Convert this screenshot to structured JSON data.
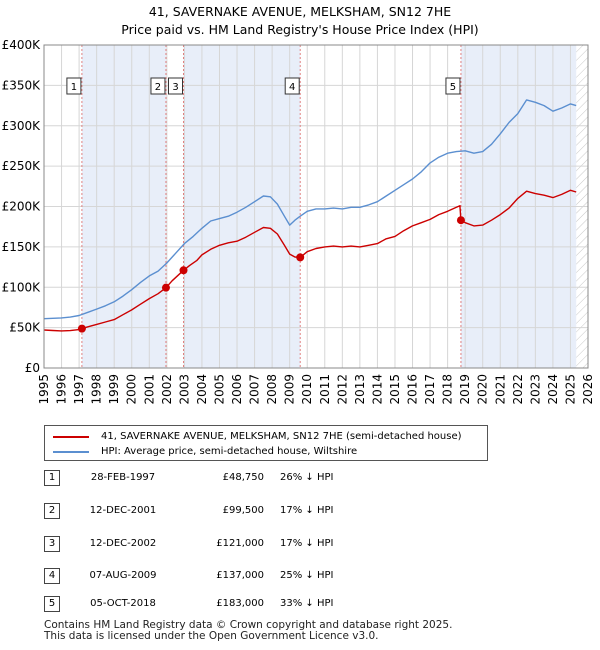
{
  "title_line1": "41, SAVERNAKE AVENUE, MELKSHAM, SN12 7HE",
  "title_line2": "Price paid vs. HM Land Registry's House Price Index (HPI)",
  "colors": {
    "price_line": "#cc0000",
    "hpi_line": "#5b8fd0",
    "shade": "#e8eef9",
    "grid": "#d6d6d6",
    "dashed": "#e08080"
  },
  "chart_data": {
    "type": "line",
    "title": "41, SAVERNAKE AVENUE, MELKSHAM, SN12 7HE — Price paid vs. HM Land Registry's House Price Index (HPI)",
    "xlim": [
      1995,
      2026
    ],
    "ylim": [
      0,
      400000
    ],
    "y_ticks": [
      {
        "value": 0,
        "label": "£0"
      },
      {
        "value": 50000,
        "label": "£50K"
      },
      {
        "value": 100000,
        "label": "£100K"
      },
      {
        "value": 150000,
        "label": "£150K"
      },
      {
        "value": 200000,
        "label": "£200K"
      },
      {
        "value": 250000,
        "label": "£250K"
      },
      {
        "value": 300000,
        "label": "£300K"
      },
      {
        "value": 350000,
        "label": "£350K"
      },
      {
        "value": 400000,
        "label": "£400K"
      }
    ],
    "x_ticks": [
      "1995",
      "1996",
      "1997",
      "1998",
      "1999",
      "2000",
      "2001",
      "2002",
      "2003",
      "2004",
      "2005",
      "2006",
      "2007",
      "2008",
      "2009",
      "2010",
      "2011",
      "2012",
      "2013",
      "2014",
      "2015",
      "2016",
      "2017",
      "2018",
      "2019",
      "2020",
      "2021",
      "2022",
      "2023",
      "2024",
      "2025",
      "2026"
    ],
    "shaded_ranges": [
      [
        1997.16,
        2001.95
      ],
      [
        2002.95,
        2009.6
      ],
      [
        2018.76,
        2025.33
      ]
    ],
    "hatch_from": 2025.33,
    "series": [
      {
        "name": "41, SAVERNAKE AVENUE, MELKSHAM, SN12 7HE (semi-detached house)",
        "x": [
          1995.0,
          1995.5,
          1996.0,
          1996.5,
          1997.0,
          1997.16,
          1997.5,
          1998.0,
          1998.5,
          1999.0,
          1999.5,
          2000.0,
          2000.5,
          2001.0,
          2001.5,
          2001.95,
          2002.3,
          2002.95,
          2003.3,
          2003.7,
          2004.0,
          2004.5,
          2005.0,
          2005.5,
          2006.0,
          2006.5,
          2007.0,
          2007.5,
          2007.9,
          2008.3,
          2008.7,
          2009.0,
          2009.3,
          2009.6,
          2010.0,
          2010.5,
          2011.0,
          2011.5,
          2012.0,
          2012.5,
          2013.0,
          2013.5,
          2014.0,
          2014.5,
          2015.0,
          2015.5,
          2016.0,
          2016.5,
          2017.0,
          2017.5,
          2018.0,
          2018.5,
          2018.7,
          2018.76,
          2019.0,
          2019.5,
          2020.0,
          2020.5,
          2021.0,
          2021.5,
          2022.0,
          2022.5,
          2023.0,
          2023.5,
          2024.0,
          2024.5,
          2025.0,
          2025.33
        ],
        "values": [
          47000,
          46500,
          46000,
          46300,
          47500,
          48750,
          51000,
          54000,
          57000,
          60000,
          66000,
          72000,
          79000,
          86000,
          92000,
          99500,
          108000,
          121000,
          127000,
          133000,
          140000,
          147000,
          152000,
          155000,
          157000,
          162000,
          168000,
          174000,
          173000,
          166000,
          152000,
          141000,
          137500,
          137000,
          144000,
          148000,
          150000,
          151000,
          150000,
          151000,
          150000,
          152000,
          154000,
          160000,
          163000,
          170000,
          176000,
          180000,
          184000,
          190000,
          194000,
          199000,
          201000,
          183000,
          180000,
          176000,
          177000,
          183000,
          190000,
          198000,
          210000,
          219000,
          216000,
          214000,
          211000,
          215000,
          220000,
          218000
        ]
      },
      {
        "name": "HPI: Average price, semi-detached house, Wiltshire",
        "x": [
          1995.0,
          1995.5,
          1996.0,
          1996.5,
          1997.0,
          1997.5,
          1998.0,
          1998.5,
          1999.0,
          1999.5,
          2000.0,
          2000.5,
          2001.0,
          2001.5,
          2002.0,
          2002.5,
          2003.0,
          2003.5,
          2004.0,
          2004.5,
          2005.0,
          2005.5,
          2006.0,
          2006.5,
          2007.0,
          2007.5,
          2007.9,
          2008.3,
          2008.7,
          2009.0,
          2009.3,
          2009.6,
          2010.0,
          2010.5,
          2011.0,
          2011.5,
          2012.0,
          2012.5,
          2013.0,
          2013.5,
          2014.0,
          2014.5,
          2015.0,
          2015.5,
          2016.0,
          2016.5,
          2017.0,
          2017.5,
          2018.0,
          2018.5,
          2019.0,
          2019.5,
          2020.0,
          2020.5,
          2021.0,
          2021.5,
          2022.0,
          2022.5,
          2023.0,
          2023.5,
          2024.0,
          2024.5,
          2025.0,
          2025.33
        ],
        "values": [
          61000,
          61500,
          62000,
          63000,
          65000,
          69000,
          73000,
          77000,
          82000,
          89000,
          97000,
          106000,
          114000,
          120000,
          130000,
          142000,
          154000,
          163000,
          173000,
          182000,
          185000,
          188000,
          193000,
          199000,
          206000,
          213000,
          212000,
          203000,
          188000,
          177000,
          183000,
          188000,
          194000,
          197000,
          197000,
          198000,
          197000,
          199000,
          199000,
          202000,
          206000,
          213000,
          220000,
          227000,
          234000,
          243000,
          254000,
          261000,
          266000,
          268000,
          269000,
          266000,
          268000,
          277000,
          290000,
          304000,
          315000,
          332000,
          329000,
          325000,
          318000,
          322000,
          327000,
          325000
        ]
      }
    ],
    "markers": [
      {
        "label": "1",
        "x": 1997.16,
        "value": 48750
      },
      {
        "label": "2",
        "x": 2001.95,
        "value": 99500
      },
      {
        "label": "3",
        "x": 2002.95,
        "value": 121000
      },
      {
        "label": "4",
        "x": 2009.6,
        "value": 137000
      },
      {
        "label": "5",
        "x": 2018.76,
        "value": 183000
      }
    ]
  },
  "legend": {
    "price_label": "41, SAVERNAKE AVENUE, MELKSHAM, SN12 7HE (semi-detached house)",
    "hpi_label": "HPI: Average price, semi-detached house, Wiltshire"
  },
  "sales": [
    {
      "num": "1",
      "date": "28-FEB-1997",
      "price": "£48,750",
      "hpi": "26% ↓ HPI"
    },
    {
      "num": "2",
      "date": "12-DEC-2001",
      "price": "£99,500",
      "hpi": "17% ↓ HPI"
    },
    {
      "num": "3",
      "date": "12-DEC-2002",
      "price": "£121,000",
      "hpi": "17% ↓ HPI"
    },
    {
      "num": "4",
      "date": "07-AUG-2009",
      "price": "£137,000",
      "hpi": "25% ↓ HPI"
    },
    {
      "num": "5",
      "date": "05-OCT-2018",
      "price": "£183,000",
      "hpi": "33% ↓ HPI"
    }
  ],
  "footer_line1": "Contains HM Land Registry data © Crown copyright and database right 2025.",
  "footer_line2": "This data is licensed under the Open Government Licence v3.0."
}
